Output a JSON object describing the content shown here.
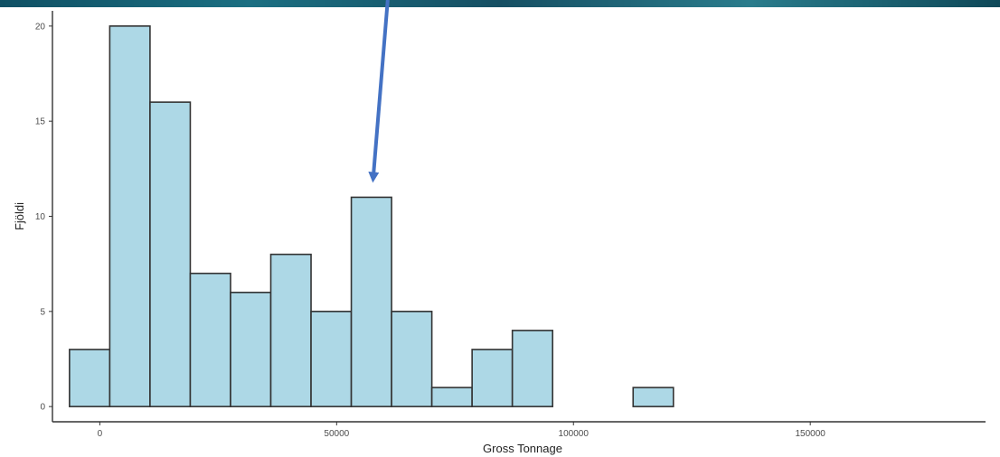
{
  "chart_data": {
    "type": "bar",
    "subtype": "histogram",
    "xlabel": "Gross Tonnage",
    "ylabel": "Fjöldi",
    "xlim": [
      -10000,
      187000
    ],
    "ylim": [
      -0.8,
      20.8
    ],
    "x_ticks": [
      0,
      50000,
      100000,
      150000
    ],
    "x_tick_labels": [
      "0",
      "50000",
      "100000",
      "150000"
    ],
    "y_ticks": [
      0,
      5,
      10,
      15,
      20
    ],
    "y_tick_labels": [
      "0",
      "5",
      "10",
      "15",
      "20"
    ],
    "bins": [
      {
        "start": -6400,
        "end": 2100,
        "count": 3
      },
      {
        "start": 2100,
        "end": 10600,
        "count": 20
      },
      {
        "start": 10600,
        "end": 19100,
        "count": 16
      },
      {
        "start": 19100,
        "end": 27600,
        "count": 7
      },
      {
        "start": 27600,
        "end": 36100,
        "count": 6
      },
      {
        "start": 36100,
        "end": 44600,
        "count": 8
      },
      {
        "start": 44600,
        "end": 53100,
        "count": 5
      },
      {
        "start": 53100,
        "end": 61600,
        "count": 11
      },
      {
        "start": 61600,
        "end": 70100,
        "count": 5
      },
      {
        "start": 70100,
        "end": 78600,
        "count": 1
      },
      {
        "start": 78600,
        "end": 87100,
        "count": 3
      },
      {
        "start": 87100,
        "end": 95600,
        "count": 4
      },
      {
        "start": 95600,
        "end": 104100,
        "count": 0
      },
      {
        "start": 104100,
        "end": 112600,
        "count": 0
      },
      {
        "start": 112600,
        "end": 121100,
        "count": 1
      }
    ],
    "grid": false,
    "annotation": {
      "type": "arrow",
      "points_to_bin_count": 11
    },
    "colors": {
      "bar_fill": "#add8e6",
      "bar_stroke": "#333333",
      "axis": "#333333",
      "arrow": "#4472c4",
      "top_band": "#1b6f82"
    }
  }
}
